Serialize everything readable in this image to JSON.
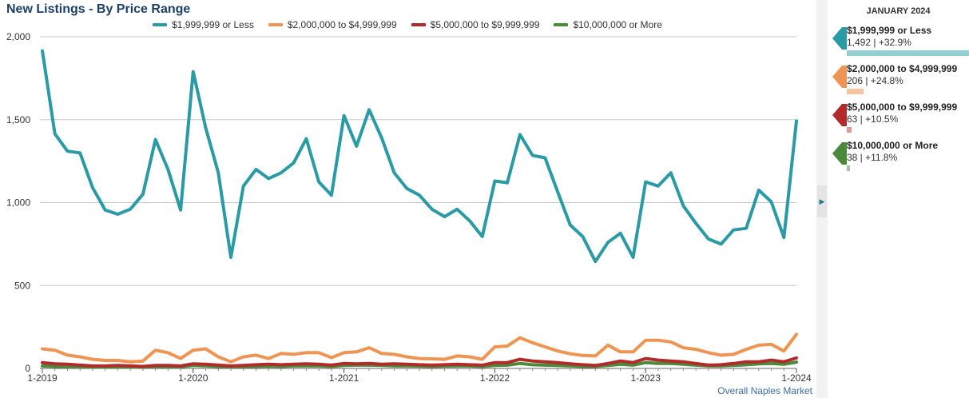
{
  "title": "New Listings - By Price Range",
  "footer": "Overall Naples Market",
  "side_panel": {
    "header": "JANUARY 2024",
    "items": [
      {
        "label": "$1,999,999 or Less",
        "stat": "1,492 | +32.9%",
        "color": "#2a9aa5",
        "bar_color": "#93cfd2",
        "bar_fraction": 1.0
      },
      {
        "label": "$2,000,000 to $4,999,999",
        "stat": "206 | +24.8%",
        "color": "#ef9452",
        "bar_color": "#f6c4a0",
        "bar_fraction": 0.138
      },
      {
        "label": "$5,000,000 to $9,999,999",
        "stat": "63 | +10.5%",
        "color": "#b22b2b",
        "bar_color": "#dd9a9a",
        "bar_fraction": 0.042
      },
      {
        "label": "$10,000,000 or More",
        "stat": "38 | +11.8%",
        "color": "#4a8a3a",
        "bar_color": "#a5c69a",
        "bar_fraction": 0.025
      }
    ]
  },
  "chart_data": {
    "type": "line",
    "ylim": [
      0,
      2000
    ],
    "yticks": [
      0,
      500,
      1000,
      1500,
      2000
    ],
    "ytick_labels": [
      "0",
      "500",
      "1,000",
      "1,500",
      "2,000"
    ],
    "xtick_labels": [
      "1-2019",
      "1-2020",
      "1-2021",
      "1-2022",
      "1-2023",
      "1-2024"
    ],
    "xtick_index": [
      0,
      12,
      24,
      36,
      48,
      60
    ],
    "grid": true,
    "legend_position": "top",
    "series": [
      {
        "name": "$1,999,999 or Less",
        "color": "#2a9aa5",
        "values": [
          1915,
          1415,
          1310,
          1300,
          1090,
          955,
          930,
          960,
          1050,
          1380,
          1200,
          955,
          1790,
          1450,
          1180,
          670,
          1100,
          1200,
          1145,
          1180,
          1240,
          1385,
          1125,
          1045,
          1525,
          1340,
          1560,
          1390,
          1180,
          1085,
          1045,
          960,
          915,
          960,
          890,
          795,
          1130,
          1120,
          1410,
          1285,
          1270,
          1065,
          865,
          795,
          645,
          760,
          815,
          670,
          1125,
          1100,
          1180,
          980,
          875,
          780,
          750,
          835,
          845,
          1075,
          1005,
          790,
          1492
        ]
      },
      {
        "name": "$2,000,000 to $4,999,999",
        "color": "#ef9452",
        "values": [
          118,
          110,
          80,
          70,
          55,
          48,
          48,
          40,
          45,
          110,
          95,
          60,
          110,
          118,
          70,
          40,
          70,
          80,
          60,
          90,
          85,
          95,
          95,
          65,
          95,
          100,
          125,
          90,
          85,
          70,
          60,
          58,
          55,
          75,
          70,
          55,
          130,
          135,
          185,
          155,
          130,
          105,
          88,
          78,
          75,
          140,
          100,
          100,
          170,
          170,
          160,
          125,
          115,
          95,
          80,
          85,
          115,
          140,
          145,
          105,
          206
        ]
      },
      {
        "name": "$5,000,000 to $9,999,999",
        "color": "#b22b2b",
        "values": [
          35,
          28,
          25,
          20,
          15,
          15,
          18,
          15,
          12,
          18,
          18,
          15,
          28,
          25,
          20,
          15,
          18,
          22,
          25,
          22,
          25,
          28,
          25,
          20,
          30,
          28,
          30,
          25,
          28,
          25,
          22,
          20,
          22,
          25,
          22,
          20,
          35,
          35,
          55,
          45,
          40,
          35,
          28,
          22,
          18,
          30,
          45,
          35,
          60,
          50,
          45,
          40,
          30,
          20,
          22,
          30,
          40,
          40,
          50,
          40,
          63
        ]
      },
      {
        "name": "$10,000,000 or More",
        "color": "#4a8a3a",
        "values": [
          15,
          12,
          10,
          10,
          8,
          8,
          10,
          8,
          8,
          12,
          10,
          10,
          18,
          15,
          12,
          10,
          12,
          12,
          14,
          12,
          15,
          15,
          15,
          12,
          18,
          20,
          20,
          18,
          15,
          15,
          14,
          12,
          14,
          15,
          15,
          12,
          18,
          20,
          30,
          22,
          20,
          18,
          15,
          12,
          12,
          18,
          25,
          20,
          35,
          30,
          30,
          25,
          20,
          15,
          15,
          18,
          22,
          28,
          30,
          25,
          38
        ]
      }
    ]
  }
}
